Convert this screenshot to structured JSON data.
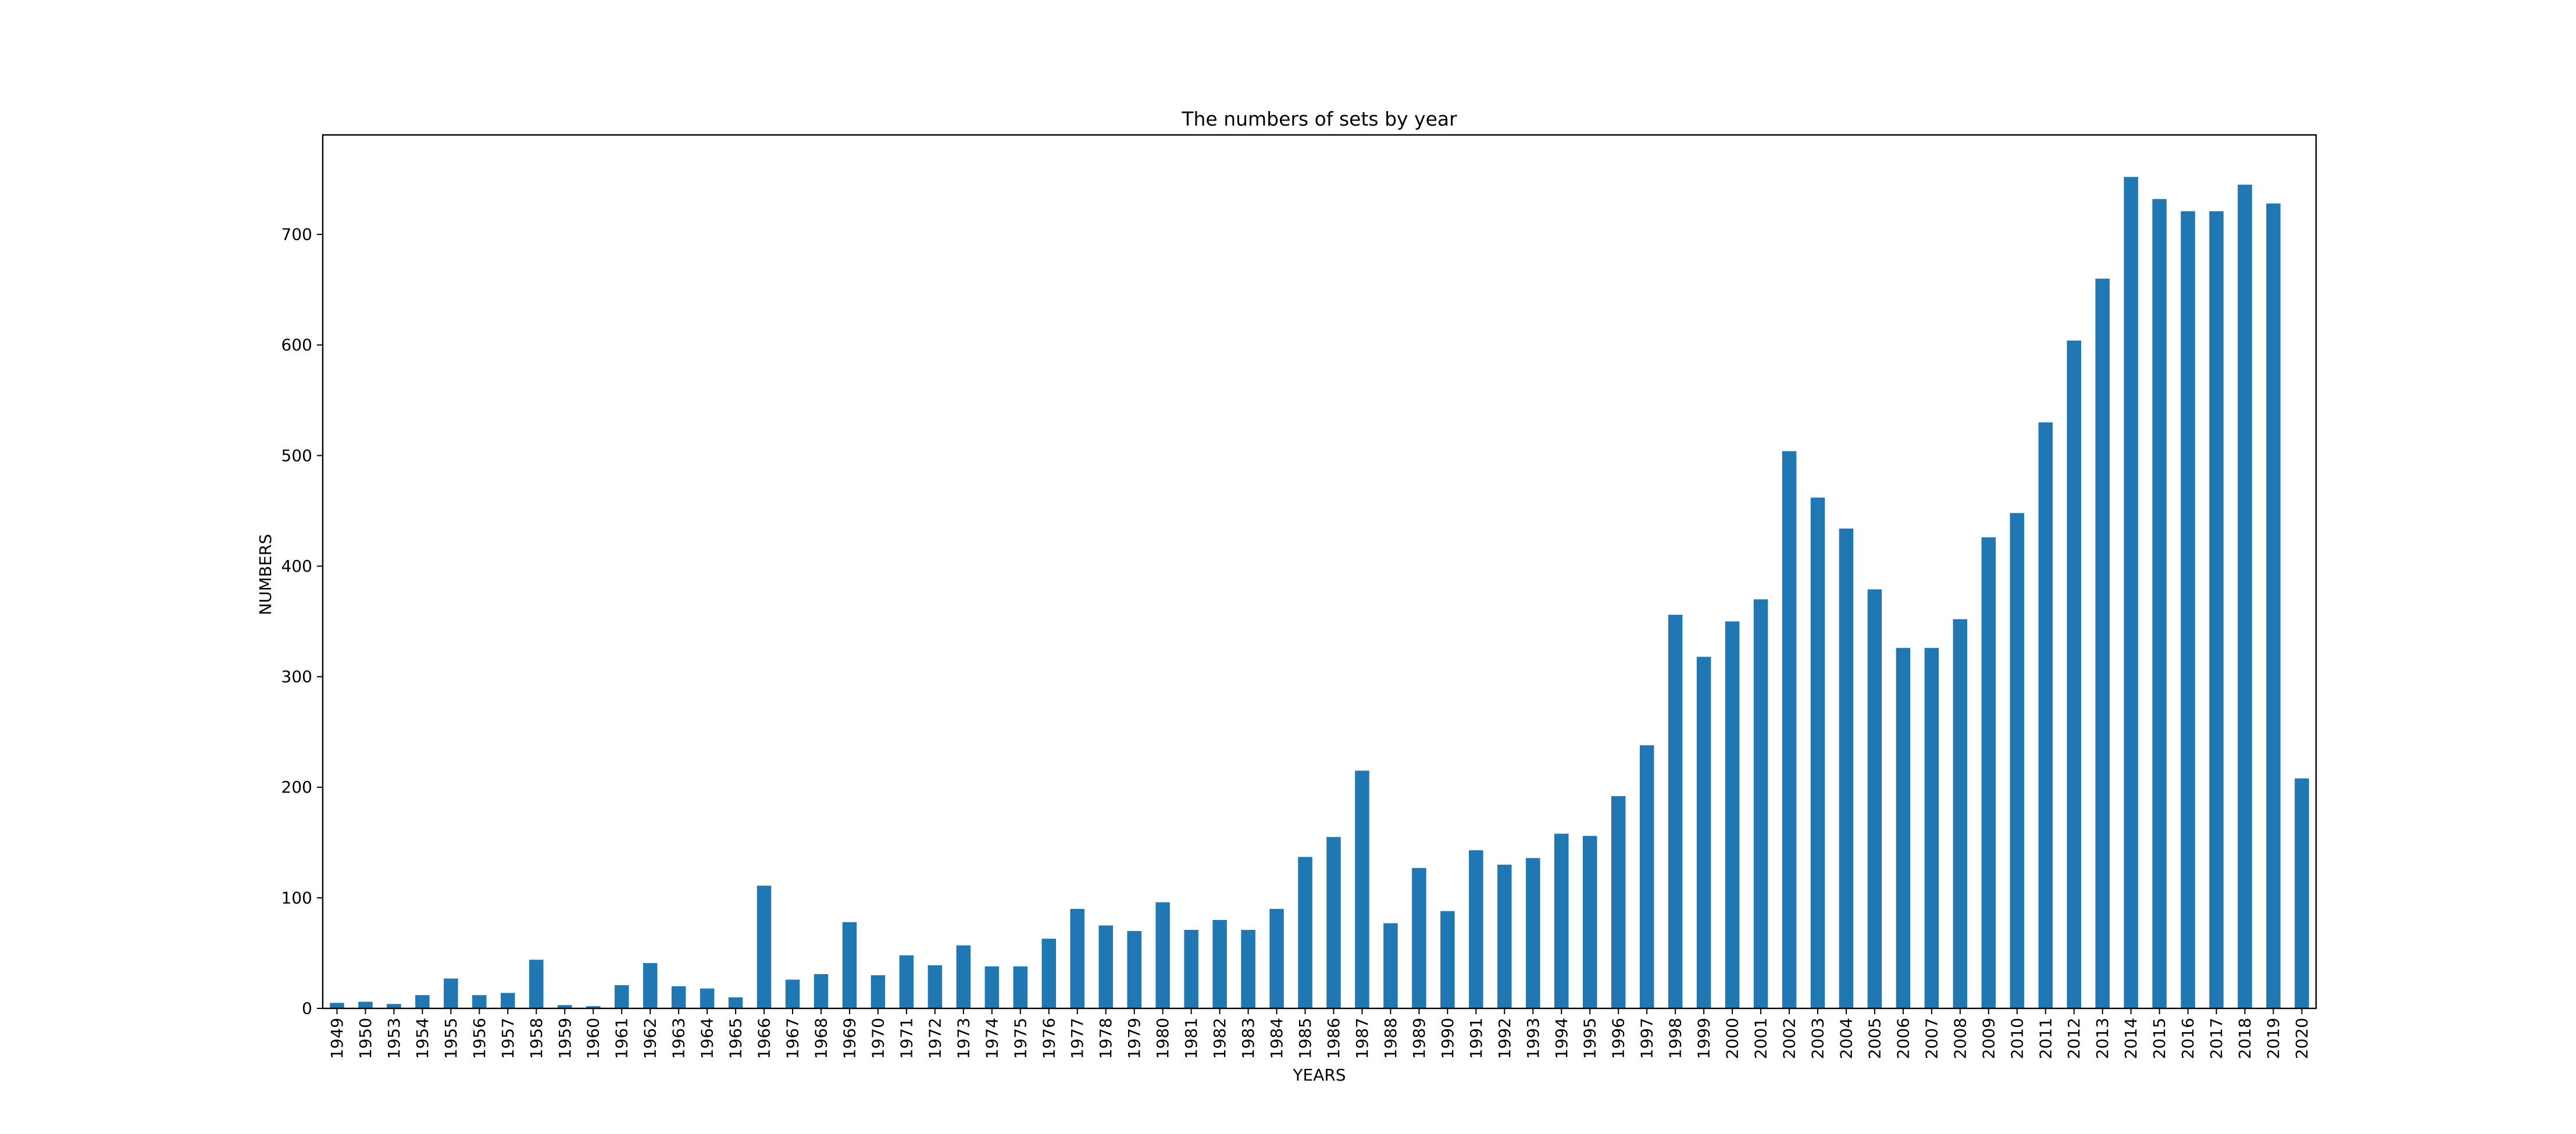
{
  "chart_data": {
    "type": "bar",
    "title": "The numbers of sets by year",
    "xlabel": "YEARS",
    "ylabel": "NUMBERS",
    "categories": [
      "1949",
      "1950",
      "1953",
      "1954",
      "1955",
      "1956",
      "1957",
      "1958",
      "1959",
      "1960",
      "1961",
      "1962",
      "1963",
      "1964",
      "1965",
      "1966",
      "1967",
      "1968",
      "1969",
      "1970",
      "1971",
      "1972",
      "1973",
      "1974",
      "1975",
      "1976",
      "1977",
      "1978",
      "1979",
      "1980",
      "1981",
      "1982",
      "1983",
      "1984",
      "1985",
      "1986",
      "1987",
      "1988",
      "1989",
      "1990",
      "1991",
      "1992",
      "1993",
      "1994",
      "1995",
      "1996",
      "1997",
      "1998",
      "1999",
      "2000",
      "2001",
      "2002",
      "2003",
      "2004",
      "2005",
      "2006",
      "2007",
      "2008",
      "2009",
      "2010",
      "2011",
      "2012",
      "2013",
      "2014",
      "2015",
      "2016",
      "2017",
      "2018",
      "2019",
      "2020"
    ],
    "values": [
      5,
      6,
      4,
      12,
      27,
      12,
      14,
      44,
      3,
      2,
      21,
      41,
      20,
      18,
      10,
      111,
      26,
      31,
      78,
      30,
      48,
      39,
      57,
      38,
      38,
      63,
      90,
      75,
      70,
      96,
      71,
      80,
      71,
      90,
      137,
      155,
      215,
      77,
      127,
      88,
      143,
      130,
      136,
      158,
      156,
      192,
      238,
      356,
      318,
      350,
      370,
      504,
      462,
      434,
      379,
      326,
      326,
      352,
      426,
      448,
      530,
      604,
      660,
      752,
      732,
      721,
      721,
      745,
      728,
      208
    ],
    "ylim": [
      0,
      790
    ],
    "yticks": [
      0,
      100,
      200,
      300,
      400,
      500,
      600,
      700
    ],
    "bar_color": "#1f77b4",
    "grid": false,
    "legend": "none"
  }
}
